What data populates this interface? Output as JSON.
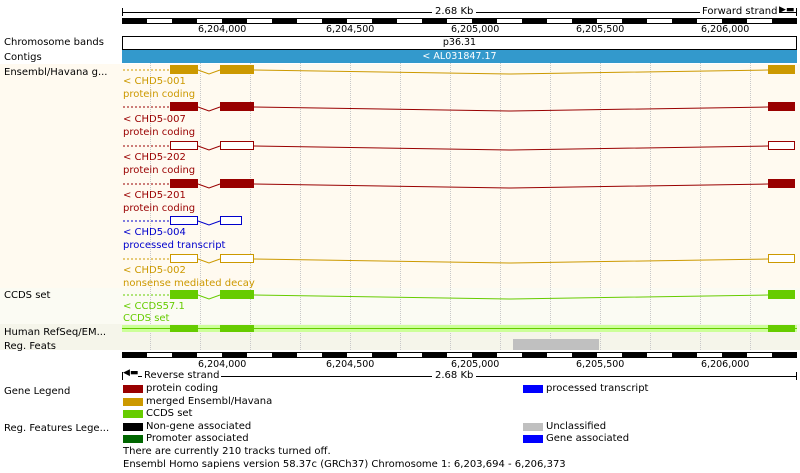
{
  "top_scale": {
    "label": "2.68 Kb",
    "strand": "Forward strand",
    "ticks": [
      "6,204,000",
      "6,204,500",
      "6,205,000",
      "6,205,500",
      "6,206,000"
    ]
  },
  "bottom_scale": {
    "label": "2.68 Kb",
    "strand": "Reverse strand",
    "ticks": [
      "6,204,000",
      "6,204,500",
      "6,205,000",
      "6,205,500",
      "6,206,000"
    ]
  },
  "tracks": {
    "chromosome_bands": {
      "label": "Chromosome bands",
      "band": "p36.31"
    },
    "contigs": {
      "label": "Contigs",
      "name": "< AL031847.17"
    },
    "ensembl": {
      "label": "Ensembl/Havana g...",
      "transcripts": [
        {
          "name": "< CHD5-001",
          "biotype": "protein coding",
          "color": "#cc9900"
        },
        {
          "name": "< CHD5-007",
          "biotype": "protein coding",
          "color": "#990000"
        },
        {
          "name": "< CHD5-202",
          "biotype": "protein coding",
          "color": "#990000"
        },
        {
          "name": "< CHD5-201",
          "biotype": "protein coding",
          "color": "#990000"
        },
        {
          "name": "< CHD5-004",
          "biotype": "processed transcript",
          "color": "#0000cc"
        },
        {
          "name": "< CHD5-002",
          "biotype": "nonsense mediated decay",
          "color": "#cc9900"
        }
      ]
    },
    "ccds": {
      "label": "CCDS set",
      "name": "< CCDS57.1",
      "sub": "CCDS set",
      "color": "#66cc00"
    },
    "refseq": {
      "label": "Human RefSeq/EM..."
    },
    "reg_feats": {
      "label": "Reg. Feats"
    }
  },
  "gene_legend": {
    "label": "Gene Legend",
    "items": [
      {
        "text": "protein coding",
        "color": "#990000"
      },
      {
        "text": "processed transcript",
        "color": "#0000ff"
      },
      {
        "text": "merged Ensembl/Havana",
        "color": "#cc9900"
      },
      {
        "text": "CCDS set",
        "color": "#66cc00"
      }
    ]
  },
  "reg_legend": {
    "label": "Reg. Features Lege...",
    "items": [
      {
        "text": "Non-gene associated",
        "color": "#000000"
      },
      {
        "text": "Unclassified",
        "color": "#c0c0c0"
      },
      {
        "text": "Promoter associated",
        "color": "#006600"
      },
      {
        "text": "Gene associated",
        "color": "#0000ff"
      }
    ]
  },
  "footer": {
    "tracks_off": "There are currently 210 tracks turned off.",
    "version": "Ensembl Homo sapiens version 58.37c (GRCh37) Chromosome 1: 6,203,694 - 6,206,373"
  }
}
